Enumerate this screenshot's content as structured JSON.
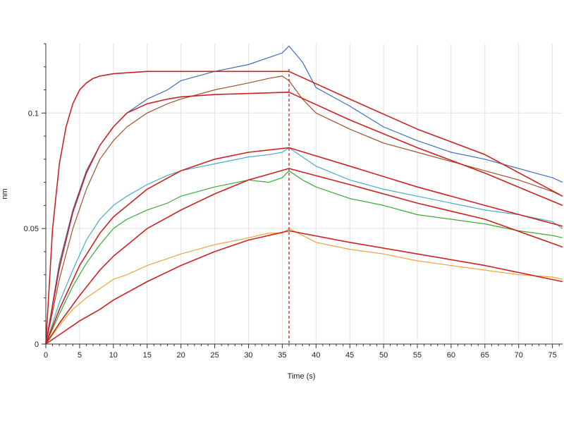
{
  "chart_data": {
    "type": "line",
    "xlabel": "Time (s)",
    "ylabel": "nm",
    "xlim": [
      0,
      76.5
    ],
    "ylim": [
      0,
      0.13
    ],
    "x_ticks": [
      0,
      5,
      10,
      15,
      20,
      25,
      30,
      35,
      40,
      45,
      50,
      55,
      60,
      65,
      70,
      75
    ],
    "y_ticks": [
      0,
      0.05,
      0.1
    ],
    "y_tick_labels": [
      "0",
      "0.05",
      "0.1"
    ],
    "grid": true,
    "phase_boundary_x": 36,
    "series": [
      {
        "color": "#3f6fbf",
        "points": [
          [
            0,
            0
          ],
          [
            2,
            0.035
          ],
          [
            4,
            0.058
          ],
          [
            6,
            0.075
          ],
          [
            8,
            0.086
          ],
          [
            10,
            0.094
          ],
          [
            12,
            0.1
          ],
          [
            15,
            0.106
          ],
          [
            18,
            0.11
          ],
          [
            20,
            0.114
          ],
          [
            25,
            0.118
          ],
          [
            30,
            0.121
          ],
          [
            33,
            0.124
          ],
          [
            35,
            0.126
          ],
          [
            36,
            0.129
          ],
          [
            38,
            0.122
          ],
          [
            40,
            0.111
          ],
          [
            45,
            0.103
          ],
          [
            50,
            0.094
          ],
          [
            55,
            0.088
          ],
          [
            60,
            0.083
          ],
          [
            65,
            0.08
          ],
          [
            70,
            0.076
          ],
          [
            75,
            0.072
          ],
          [
            76.5,
            0.07
          ]
        ]
      },
      {
        "color": "#a0522d",
        "points": [
          [
            0,
            0
          ],
          [
            2,
            0.028
          ],
          [
            4,
            0.05
          ],
          [
            6,
            0.067
          ],
          [
            8,
            0.08
          ],
          [
            10,
            0.088
          ],
          [
            12,
            0.094
          ],
          [
            15,
            0.1
          ],
          [
            18,
            0.104
          ],
          [
            20,
            0.106
          ],
          [
            25,
            0.11
          ],
          [
            30,
            0.113
          ],
          [
            33,
            0.115
          ],
          [
            35,
            0.116
          ],
          [
            36,
            0.114
          ],
          [
            38,
            0.106
          ],
          [
            40,
            0.1
          ],
          [
            45,
            0.093
          ],
          [
            50,
            0.087
          ],
          [
            55,
            0.083
          ],
          [
            60,
            0.079
          ],
          [
            65,
            0.075
          ],
          [
            70,
            0.071
          ],
          [
            75,
            0.066
          ],
          [
            76.5,
            0.064
          ]
        ]
      },
      {
        "color": "#4bacc6",
        "points": [
          [
            0,
            0
          ],
          [
            2,
            0.018
          ],
          [
            4,
            0.032
          ],
          [
            6,
            0.045
          ],
          [
            8,
            0.054
          ],
          [
            10,
            0.06
          ],
          [
            12,
            0.064
          ],
          [
            15,
            0.069
          ],
          [
            18,
            0.073
          ],
          [
            20,
            0.075
          ],
          [
            25,
            0.078
          ],
          [
            30,
            0.081
          ],
          [
            33,
            0.082
          ],
          [
            35,
            0.083
          ],
          [
            36,
            0.085
          ],
          [
            38,
            0.081
          ],
          [
            40,
            0.077
          ],
          [
            45,
            0.071
          ],
          [
            50,
            0.067
          ],
          [
            55,
            0.064
          ],
          [
            60,
            0.061
          ],
          [
            65,
            0.058
          ],
          [
            70,
            0.056
          ],
          [
            75,
            0.053
          ],
          [
            76.5,
            0.05
          ]
        ]
      },
      {
        "color": "#3aaa35",
        "points": [
          [
            0,
            0
          ],
          [
            2,
            0.013
          ],
          [
            4,
            0.025
          ],
          [
            6,
            0.035
          ],
          [
            8,
            0.043
          ],
          [
            10,
            0.05
          ],
          [
            12,
            0.054
          ],
          [
            15,
            0.058
          ],
          [
            18,
            0.061
          ],
          [
            20,
            0.064
          ],
          [
            25,
            0.068
          ],
          [
            30,
            0.071
          ],
          [
            33,
            0.07
          ],
          [
            35,
            0.072
          ],
          [
            36,
            0.075
          ],
          [
            38,
            0.071
          ],
          [
            40,
            0.068
          ],
          [
            45,
            0.063
          ],
          [
            50,
            0.06
          ],
          [
            55,
            0.056
          ],
          [
            60,
            0.054
          ],
          [
            65,
            0.052
          ],
          [
            70,
            0.049
          ],
          [
            75,
            0.047
          ],
          [
            76.5,
            0.046
          ]
        ]
      },
      {
        "color": "#f0a23b",
        "points": [
          [
            0,
            0
          ],
          [
            2,
            0.008
          ],
          [
            4,
            0.015
          ],
          [
            6,
            0.02
          ],
          [
            8,
            0.024
          ],
          [
            10,
            0.028
          ],
          [
            12,
            0.03
          ],
          [
            15,
            0.034
          ],
          [
            18,
            0.037
          ],
          [
            20,
            0.039
          ],
          [
            25,
            0.043
          ],
          [
            30,
            0.046
          ],
          [
            33,
            0.048
          ],
          [
            35,
            0.048
          ],
          [
            36,
            0.05
          ],
          [
            38,
            0.047
          ],
          [
            40,
            0.044
          ],
          [
            45,
            0.041
          ],
          [
            50,
            0.039
          ],
          [
            55,
            0.036
          ],
          [
            60,
            0.034
          ],
          [
            65,
            0.032
          ],
          [
            70,
            0.03
          ],
          [
            75,
            0.029
          ],
          [
            76.5,
            0.028
          ]
        ]
      }
    ],
    "fits": [
      {
        "color": "#cc2222",
        "points": [
          [
            0,
            0
          ],
          [
            1,
            0.05
          ],
          [
            2,
            0.078
          ],
          [
            3,
            0.094
          ],
          [
            4,
            0.104
          ],
          [
            5,
            0.11
          ],
          [
            6,
            0.113
          ],
          [
            7,
            0.115
          ],
          [
            8,
            0.116
          ],
          [
            10,
            0.117
          ],
          [
            15,
            0.118
          ],
          [
            36,
            0.118
          ],
          [
            45,
            0.106
          ],
          [
            55,
            0.093
          ],
          [
            65,
            0.082
          ],
          [
            76.5,
            0.064
          ]
        ]
      },
      {
        "color": "#cc2222",
        "points": [
          [
            0,
            0
          ],
          [
            2,
            0.033
          ],
          [
            4,
            0.057
          ],
          [
            6,
            0.074
          ],
          [
            8,
            0.086
          ],
          [
            10,
            0.094
          ],
          [
            12,
            0.1
          ],
          [
            15,
            0.104
          ],
          [
            18,
            0.106
          ],
          [
            20,
            0.107
          ],
          [
            25,
            0.108
          ],
          [
            36,
            0.109
          ],
          [
            45,
            0.097
          ],
          [
            55,
            0.085
          ],
          [
            65,
            0.074
          ],
          [
            76.5,
            0.06
          ]
        ]
      },
      {
        "color": "#cc2222",
        "points": [
          [
            0,
            0
          ],
          [
            2,
            0.015
          ],
          [
            5,
            0.034
          ],
          [
            8,
            0.048
          ],
          [
            10,
            0.055
          ],
          [
            15,
            0.067
          ],
          [
            20,
            0.075
          ],
          [
            25,
            0.08
          ],
          [
            30,
            0.083
          ],
          [
            36,
            0.085
          ],
          [
            45,
            0.077
          ],
          [
            55,
            0.068
          ],
          [
            65,
            0.06
          ],
          [
            76.5,
            0.051
          ]
        ]
      },
      {
        "color": "#cc2222",
        "points": [
          [
            0,
            0
          ],
          [
            2,
            0.009
          ],
          [
            5,
            0.021
          ],
          [
            8,
            0.032
          ],
          [
            10,
            0.038
          ],
          [
            15,
            0.05
          ],
          [
            20,
            0.058
          ],
          [
            25,
            0.065
          ],
          [
            30,
            0.071
          ],
          [
            36,
            0.076
          ],
          [
            45,
            0.069
          ],
          [
            55,
            0.061
          ],
          [
            65,
            0.054
          ],
          [
            76.5,
            0.042
          ]
        ]
      },
      {
        "color": "#cc2222",
        "points": [
          [
            0,
            0
          ],
          [
            2,
            0.004
          ],
          [
            5,
            0.01
          ],
          [
            8,
            0.015
          ],
          [
            10,
            0.019
          ],
          [
            15,
            0.027
          ],
          [
            20,
            0.034
          ],
          [
            25,
            0.04
          ],
          [
            30,
            0.045
          ],
          [
            36,
            0.049
          ],
          [
            45,
            0.044
          ],
          [
            55,
            0.039
          ],
          [
            65,
            0.034
          ],
          [
            76.5,
            0.027
          ]
        ]
      }
    ]
  },
  "colors": {
    "grid": "#e2e2e2",
    "axis": "#333333",
    "fit": "#cc2222",
    "phase_line": "#cc2222"
  }
}
